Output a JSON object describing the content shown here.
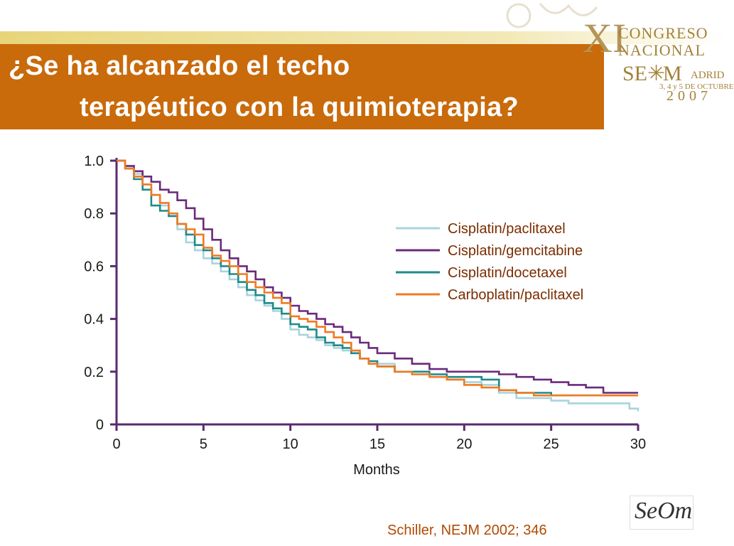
{
  "slide": {
    "title_line1": "¿Se ha alcanzado el techo",
    "title_line2": "terapéutico con la quimioterapia?",
    "citation": "Schiller, NEJM 2002; 346"
  },
  "logo": {
    "xi": "XI",
    "congreso": "CONGRESO",
    "nacional": "NACIONAL",
    "seom": "SE",
    "seom_tail": "M",
    "madrid": "ADRID",
    "dates": "3, 4 y 5 DE OCTUBRE",
    "year": "2007",
    "brand_color": "#c96a0b",
    "icon": "compass-rose-icon",
    "seom_badge": "SeOm"
  },
  "chart_data": {
    "type": "line",
    "step": true,
    "xlabel": "Months",
    "ylabel": "",
    "xlim": [
      0,
      30
    ],
    "ylim": [
      0,
      1
    ],
    "xticks": [
      "0",
      "5",
      "10",
      "15",
      "20",
      "25",
      "30"
    ],
    "yticks": [
      "0",
      "0.2",
      "0.4",
      "0.6",
      "0.8",
      "1.0"
    ],
    "legend_position": "upper-right",
    "series": [
      {
        "name": "Cisplatin/paclitaxel",
        "color": "#a8d4dc",
        "x": [
          0,
          0.5,
          1,
          1.5,
          2,
          2.5,
          3,
          3.5,
          4,
          4.5,
          5,
          5.5,
          6,
          6.5,
          7,
          7.5,
          8,
          8.5,
          9,
          9.5,
          10,
          10.5,
          11,
          11.5,
          12,
          12.5,
          13,
          13.5,
          14,
          14.5,
          15,
          16,
          17,
          18,
          19,
          20,
          21,
          22,
          23,
          24,
          25,
          26,
          27,
          28,
          29,
          29.5,
          30
        ],
        "y": [
          1.0,
          0.98,
          0.95,
          0.91,
          0.87,
          0.83,
          0.79,
          0.74,
          0.69,
          0.66,
          0.63,
          0.61,
          0.58,
          0.55,
          0.52,
          0.49,
          0.47,
          0.45,
          0.43,
          0.4,
          0.36,
          0.34,
          0.33,
          0.32,
          0.3,
          0.29,
          0.28,
          0.27,
          0.25,
          0.24,
          0.23,
          0.2,
          0.19,
          0.18,
          0.17,
          0.16,
          0.15,
          0.12,
          0.1,
          0.1,
          0.09,
          0.08,
          0.08,
          0.08,
          0.08,
          0.06,
          0.05
        ]
      },
      {
        "name": "Cisplatin/gemcitabine",
        "color": "#6b2a7a",
        "x": [
          0,
          0.5,
          1,
          1.5,
          2,
          2.5,
          3,
          3.5,
          4,
          4.5,
          5,
          5.5,
          6,
          6.5,
          7,
          7.5,
          8,
          8.5,
          9,
          9.5,
          10,
          10.5,
          11,
          11.5,
          12,
          12.5,
          13,
          13.5,
          14,
          14.5,
          15,
          16,
          17,
          18,
          19,
          20,
          21,
          22,
          23,
          24,
          25,
          26,
          27,
          28,
          29,
          30
        ],
        "y": [
          1.0,
          0.98,
          0.96,
          0.94,
          0.92,
          0.89,
          0.88,
          0.85,
          0.82,
          0.78,
          0.74,
          0.7,
          0.66,
          0.63,
          0.6,
          0.58,
          0.55,
          0.52,
          0.5,
          0.48,
          0.45,
          0.43,
          0.42,
          0.4,
          0.38,
          0.37,
          0.35,
          0.33,
          0.31,
          0.29,
          0.27,
          0.25,
          0.23,
          0.21,
          0.2,
          0.2,
          0.2,
          0.19,
          0.18,
          0.17,
          0.16,
          0.15,
          0.14,
          0.12,
          0.12,
          0.12
        ]
      },
      {
        "name": "Cisplatin/docetaxel",
        "color": "#1e8a8a",
        "x": [
          0,
          0.5,
          1,
          1.5,
          2,
          2.5,
          3,
          3.5,
          4,
          4.5,
          5,
          5.5,
          6,
          6.5,
          7,
          7.5,
          8,
          8.5,
          9,
          9.5,
          10,
          10.5,
          11,
          11.5,
          12,
          12.5,
          13,
          13.5,
          14,
          14.5,
          15,
          16,
          17,
          18,
          19,
          20,
          21,
          22,
          23,
          24,
          25,
          26,
          27,
          28,
          29,
          30
        ],
        "y": [
          1.0,
          0.97,
          0.93,
          0.89,
          0.83,
          0.81,
          0.79,
          0.76,
          0.72,
          0.68,
          0.66,
          0.63,
          0.6,
          0.57,
          0.54,
          0.51,
          0.49,
          0.46,
          0.44,
          0.42,
          0.38,
          0.37,
          0.36,
          0.33,
          0.31,
          0.3,
          0.29,
          0.27,
          0.25,
          0.24,
          0.22,
          0.2,
          0.2,
          0.19,
          0.18,
          0.18,
          0.17,
          0.13,
          0.12,
          0.12,
          0.11,
          0.11,
          0.11,
          0.11,
          0.11,
          0.11
        ]
      },
      {
        "name": "Carboplatin/paclitaxel",
        "color": "#f07a22",
        "x": [
          0,
          0.5,
          1,
          1.5,
          2,
          2.5,
          3,
          3.5,
          4,
          4.5,
          5,
          5.5,
          6,
          6.5,
          7,
          7.5,
          8,
          8.5,
          9,
          9.5,
          10,
          10.5,
          11,
          11.5,
          12,
          12.5,
          13,
          13.5,
          14,
          14.5,
          15,
          16,
          17,
          18,
          19,
          20,
          21,
          22,
          23,
          24,
          25,
          26,
          27,
          28,
          29,
          30
        ],
        "y": [
          1.0,
          0.97,
          0.94,
          0.91,
          0.87,
          0.84,
          0.8,
          0.76,
          0.74,
          0.72,
          0.67,
          0.64,
          0.62,
          0.6,
          0.57,
          0.54,
          0.52,
          0.5,
          0.48,
          0.46,
          0.41,
          0.4,
          0.39,
          0.37,
          0.35,
          0.33,
          0.31,
          0.28,
          0.25,
          0.23,
          0.22,
          0.2,
          0.19,
          0.18,
          0.17,
          0.15,
          0.14,
          0.13,
          0.12,
          0.11,
          0.11,
          0.11,
          0.11,
          0.11,
          0.11,
          0.11
        ]
      }
    ]
  }
}
